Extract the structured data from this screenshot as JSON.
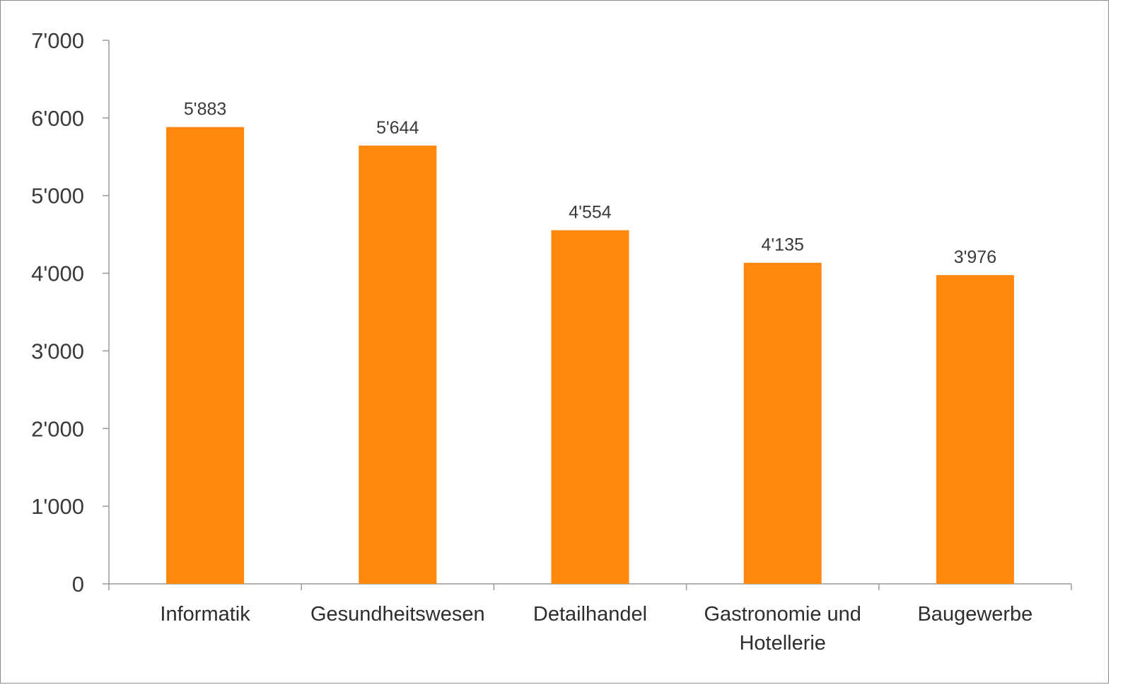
{
  "chart_data": {
    "type": "bar",
    "categories": [
      [
        "Informatik"
      ],
      [
        "Gesundheitswesen"
      ],
      [
        "Detailhandel"
      ],
      [
        "Gastronomie und",
        "Hotellerie"
      ],
      [
        "Baugewerbe"
      ]
    ],
    "values": [
      5883,
      5644,
      4554,
      4135,
      3976
    ],
    "value_labels": [
      "5'883",
      "5'644",
      "4'554",
      "4'135",
      "3'976"
    ],
    "y_ticks": [
      0,
      1000,
      2000,
      3000,
      4000,
      5000,
      6000,
      7000
    ],
    "y_tick_labels": [
      "0",
      "1'000",
      "2'000",
      "3'000",
      "4'000",
      "5'000",
      "6'000",
      "7'000"
    ],
    "ylim": [
      0,
      7000
    ],
    "grid": false,
    "legend": "none",
    "colors": {
      "bar": "#FF870C",
      "axis": "#9a9a9a"
    }
  }
}
